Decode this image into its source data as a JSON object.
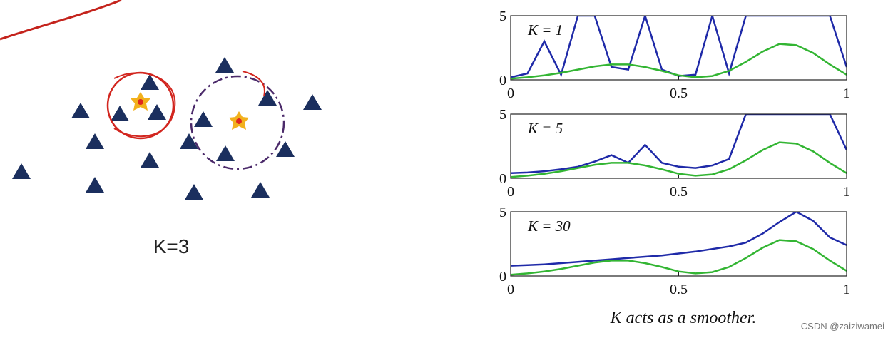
{
  "chart_data": [
    {
      "type": "line",
      "title": "K = 1",
      "x": [
        0,
        0.05,
        0.1,
        0.15,
        0.2,
        0.25,
        0.3,
        0.35,
        0.4,
        0.45,
        0.5,
        0.55,
        0.6,
        0.65,
        0.7,
        0.75,
        0.8,
        0.85,
        0.9,
        0.95,
        1
      ],
      "series": [
        {
          "color": "#1f2aa8",
          "values": [
            0.2,
            0.5,
            3.0,
            0.4,
            5,
            5,
            1.0,
            0.8,
            5,
            0.8,
            0.3,
            0.4,
            5,
            0.5,
            5,
            5,
            5,
            5,
            5,
            5,
            1.0
          ]
        },
        {
          "color": "#33b533",
          "values": [
            0.1,
            0.2,
            0.35,
            0.55,
            0.8,
            1.05,
            1.2,
            1.2,
            1.0,
            0.7,
            0.35,
            0.2,
            0.3,
            0.7,
            1.4,
            2.2,
            2.8,
            2.7,
            2.1,
            1.2,
            0.4
          ]
        }
      ],
      "xlim": [
        0,
        1
      ],
      "ylim": [
        0,
        5
      ],
      "xticks": [
        0,
        0.5,
        1
      ],
      "yticks": [
        0,
        5
      ]
    },
    {
      "type": "line",
      "title": "K = 5",
      "x": [
        0,
        0.05,
        0.1,
        0.15,
        0.2,
        0.25,
        0.3,
        0.35,
        0.4,
        0.45,
        0.5,
        0.55,
        0.6,
        0.65,
        0.7,
        0.75,
        0.8,
        0.85,
        0.9,
        0.95,
        1
      ],
      "series": [
        {
          "color": "#1f2aa8",
          "values": [
            0.4,
            0.45,
            0.55,
            0.7,
            0.9,
            1.3,
            1.8,
            1.2,
            2.6,
            1.2,
            0.9,
            0.8,
            1.0,
            1.5,
            5,
            5,
            5,
            5,
            5,
            5,
            2.2
          ]
        },
        {
          "color": "#33b533",
          "values": [
            0.1,
            0.2,
            0.35,
            0.55,
            0.8,
            1.05,
            1.2,
            1.2,
            1.0,
            0.7,
            0.35,
            0.2,
            0.3,
            0.7,
            1.4,
            2.2,
            2.8,
            2.7,
            2.1,
            1.2,
            0.4
          ]
        }
      ],
      "xlim": [
        0,
        1
      ],
      "ylim": [
        0,
        5
      ],
      "xticks": [
        0,
        0.5,
        1
      ],
      "yticks": [
        0,
        5
      ]
    },
    {
      "type": "line",
      "title": "K = 30",
      "x": [
        0,
        0.05,
        0.1,
        0.15,
        0.2,
        0.25,
        0.3,
        0.35,
        0.4,
        0.45,
        0.5,
        0.55,
        0.6,
        0.65,
        0.7,
        0.75,
        0.8,
        0.85,
        0.9,
        0.95,
        1
      ],
      "series": [
        {
          "color": "#1f2aa8",
          "values": [
            0.8,
            0.85,
            0.9,
            1.0,
            1.1,
            1.2,
            1.3,
            1.4,
            1.5,
            1.6,
            1.75,
            1.9,
            2.1,
            2.3,
            2.6,
            3.3,
            4.2,
            5,
            4.3,
            3.0,
            2.4
          ]
        },
        {
          "color": "#33b533",
          "values": [
            0.1,
            0.2,
            0.35,
            0.55,
            0.8,
            1.05,
            1.2,
            1.2,
            1.0,
            0.7,
            0.35,
            0.2,
            0.3,
            0.7,
            1.4,
            2.2,
            2.8,
            2.7,
            2.1,
            1.2,
            0.4
          ]
        }
      ],
      "xlim": [
        0,
        1
      ],
      "ylim": [
        0,
        5
      ],
      "xticks": [
        0,
        0.5,
        1
      ],
      "yticks": [
        0,
        5
      ]
    }
  ],
  "diagram": {
    "label": "K=3"
  },
  "caption": "K acts as a smoother.",
  "watermark": "CSDN @zaiziwamei"
}
